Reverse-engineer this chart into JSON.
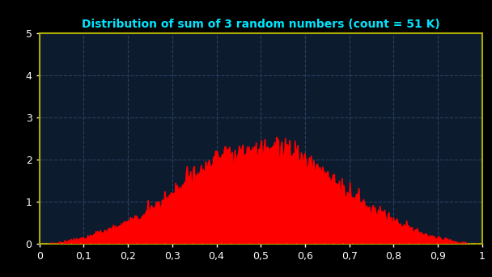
{
  "title": "Distribution of sum of 3 random numbers (count = 51 K)",
  "title_color": "#00e5ff",
  "bg_color": "#0d1b2e",
  "outer_bg_color": "#000000",
  "spine_color": "#aaaa00",
  "tick_label_color": "#ffffff",
  "grid_color": "#2a4060",
  "bar_color": "#ff0000",
  "xlim": [
    0,
    1
  ],
  "ylim": [
    0,
    5
  ],
  "xticks": [
    0,
    0.1,
    0.2,
    0.3,
    0.4,
    0.5,
    0.6,
    0.7,
    0.8,
    0.9,
    1.0
  ],
  "yticks": [
    0,
    1,
    2,
    3,
    4,
    5
  ],
  "n_samples": 51000,
  "n_bins": 500,
  "seed": 42
}
